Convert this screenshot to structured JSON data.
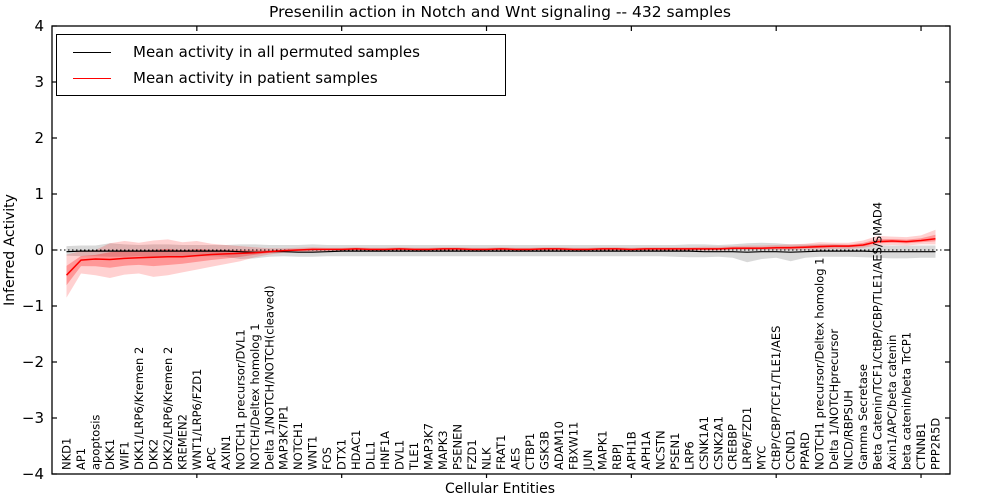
{
  "figure": {
    "title": "Presenilin action in Notch and Wnt signaling -- 432 samples",
    "xlabel": "Cellular Entities",
    "ylabel": "Inferred Activity"
  },
  "chart_data": {
    "type": "line",
    "title": "Presenilin action in Notch and Wnt signaling -- 432 samples",
    "xlabel": "Cellular Entities",
    "ylabel": "Inferred Activity",
    "ylim": [
      -4,
      4
    ],
    "yticks": [
      4,
      3,
      2,
      1,
      0,
      -1,
      -2,
      -3,
      -4
    ],
    "xticks": [
      10,
      20,
      30,
      40,
      50,
      60
    ],
    "grid": false,
    "legend_position": "upper left",
    "zero_reference_line": "dotted",
    "categories": [
      "NKD1",
      "AP1",
      "apoptosis",
      "DKK1",
      "WIF1",
      "DKK1/LRP6/Kremen 2",
      "DKK2",
      "DKK2/LRP6/Kremen 2",
      "KREMEN2",
      "WNT1/LRP6/FZD1",
      "APC",
      "AXIN1",
      "NOTCH1 precursor/DVL1",
      "NOTCH/Deltex homolog 1",
      "Delta 1/NOTCH/NOTCH(cleaved)",
      "MAP3K7IP1",
      "NOTCH1",
      "WNT1",
      "FOS",
      "DTX1",
      "HDAC1",
      "DLL1",
      "HNF1A",
      "DVL1",
      "TLE1",
      "MAP3K7",
      "MAPK3",
      "PSENEN",
      "FZD1",
      "NLK",
      "FRAT1",
      "AES",
      "CTBP1",
      "GSK3B",
      "ADAM10",
      "FBXW11",
      "JUN",
      "MAPK1",
      "RBPJ",
      "APH1B",
      "APH1A",
      "NCSTN",
      "PSEN1",
      "LRP6",
      "CSNK1A1",
      "CSNK2A1",
      "CREBBP",
      "LRP6/FZD1",
      "MYC",
      "CtBP/CBP/TCF1/TLE1/AES",
      "CCND1",
      "PPARD",
      "NOTCH1 precursor/Deltex homolog 1",
      "Delta 1/NOTCHprecursor",
      "NICD/RBPSUH",
      "Gamma Secretase",
      "Beta Catenin/TCF1/CtBP/CBP/TLE1/AES/SMAD4",
      "Axin1/APC/beta catenin",
      "beta catenin/beta TrCP1",
      "CTNNB1",
      "PPP2R5D"
    ],
    "series": [
      {
        "name": "Mean activity in all permuted samples",
        "color": "#000000",
        "line_width": 1.2,
        "band_color": "rgba(0,0,0,0.15)",
        "values": [
          -0.03,
          -0.02,
          -0.02,
          -0.02,
          -0.02,
          -0.02,
          -0.02,
          -0.02,
          -0.02,
          -0.02,
          -0.02,
          -0.02,
          -0.03,
          -0.04,
          -0.03,
          -0.03,
          -0.04,
          -0.04,
          -0.03,
          -0.02,
          -0.02,
          -0.02,
          -0.02,
          -0.02,
          -0.02,
          -0.02,
          -0.02,
          -0.02,
          -0.02,
          -0.02,
          -0.02,
          -0.02,
          -0.02,
          -0.02,
          -0.02,
          -0.02,
          -0.02,
          -0.02,
          -0.02,
          -0.02,
          -0.02,
          -0.02,
          -0.02,
          -0.02,
          -0.03,
          -0.03,
          -0.03,
          -0.04,
          -0.03,
          -0.03,
          -0.04,
          -0.03,
          -0.02,
          -0.02,
          -0.02,
          -0.02,
          -0.03,
          -0.03,
          -0.03,
          -0.03,
          -0.03
        ],
        "band_hi": [
          0.07,
          0.08,
          0.08,
          0.12,
          0.1,
          0.09,
          0.1,
          0.1,
          0.09,
          0.09,
          0.09,
          0.09,
          0.1,
          0.1,
          0.09,
          0.09,
          0.09,
          0.1,
          0.09,
          0.09,
          0.09,
          0.09,
          0.09,
          0.09,
          0.09,
          0.09,
          0.09,
          0.09,
          0.09,
          0.09,
          0.09,
          0.09,
          0.09,
          0.09,
          0.09,
          0.09,
          0.09,
          0.09,
          0.09,
          0.09,
          0.09,
          0.09,
          0.09,
          0.1,
          0.1,
          0.09,
          0.1,
          0.12,
          0.13,
          0.12,
          0.1,
          0.1,
          0.1,
          0.1,
          0.09,
          0.09,
          0.08,
          0.08,
          0.08,
          0.08,
          0.08
        ],
        "band_lo": [
          -0.1,
          -0.11,
          -0.11,
          -0.12,
          -0.12,
          -0.11,
          -0.12,
          -0.12,
          -0.11,
          -0.11,
          -0.11,
          -0.12,
          -0.16,
          -0.15,
          -0.12,
          -0.11,
          -0.12,
          -0.12,
          -0.11,
          -0.11,
          -0.11,
          -0.11,
          -0.11,
          -0.11,
          -0.11,
          -0.11,
          -0.11,
          -0.11,
          -0.11,
          -0.11,
          -0.11,
          -0.11,
          -0.11,
          -0.11,
          -0.11,
          -0.11,
          -0.11,
          -0.11,
          -0.11,
          -0.11,
          -0.11,
          -0.11,
          -0.12,
          -0.13,
          -0.13,
          -0.12,
          -0.14,
          -0.22,
          -0.16,
          -0.14,
          -0.2,
          -0.14,
          -0.12,
          -0.12,
          -0.12,
          -0.13,
          -0.14,
          -0.15,
          -0.15,
          -0.14,
          -0.14
        ]
      },
      {
        "name": "Mean activity in patient samples",
        "color": "#ff0000",
        "line_width": 1.5,
        "band_color": "rgba(255,0,0,0.18)",
        "inner_band_color": "rgba(255,0,0,0.28)",
        "inner_band_fraction": 0.45,
        "values": [
          -0.45,
          -0.18,
          -0.16,
          -0.17,
          -0.15,
          -0.14,
          -0.13,
          -0.12,
          -0.12,
          -0.1,
          -0.08,
          -0.07,
          -0.06,
          -0.05,
          -0.03,
          -0.01,
          0.0,
          0.01,
          0.01,
          0.01,
          0.02,
          0.01,
          0.01,
          0.02,
          0.01,
          0.01,
          0.02,
          0.02,
          0.01,
          0.01,
          0.02,
          0.01,
          0.01,
          0.02,
          0.02,
          0.01,
          0.01,
          0.02,
          0.02,
          0.01,
          0.02,
          0.02,
          0.02,
          0.02,
          0.02,
          0.02,
          0.03,
          0.03,
          0.03,
          0.04,
          0.04,
          0.05,
          0.06,
          0.07,
          0.07,
          0.09,
          0.15,
          0.16,
          0.15,
          0.17,
          0.2
        ],
        "band_hi": [
          -0.08,
          -0.02,
          0.0,
          0.12,
          0.16,
          0.13,
          0.17,
          0.19,
          0.14,
          0.16,
          0.11,
          0.09,
          0.07,
          0.05,
          0.03,
          0.03,
          0.04,
          0.05,
          0.04,
          0.04,
          0.05,
          0.04,
          0.04,
          0.05,
          0.04,
          0.04,
          0.05,
          0.05,
          0.04,
          0.04,
          0.05,
          0.04,
          0.04,
          0.05,
          0.05,
          0.04,
          0.04,
          0.05,
          0.05,
          0.04,
          0.05,
          0.05,
          0.05,
          0.05,
          0.06,
          0.06,
          0.07,
          0.08,
          0.08,
          0.09,
          0.1,
          0.11,
          0.14,
          0.13,
          0.13,
          0.17,
          0.25,
          0.24,
          0.23,
          0.26,
          0.36
        ],
        "band_lo": [
          -0.85,
          -0.42,
          -0.45,
          -0.5,
          -0.44,
          -0.42,
          -0.48,
          -0.45,
          -0.4,
          -0.35,
          -0.3,
          -0.25,
          -0.2,
          -0.13,
          -0.08,
          -0.05,
          -0.04,
          -0.03,
          -0.02,
          -0.02,
          -0.01,
          -0.02,
          -0.02,
          -0.01,
          -0.02,
          -0.02,
          -0.01,
          -0.01,
          -0.02,
          -0.02,
          -0.01,
          -0.02,
          -0.02,
          -0.01,
          -0.01,
          -0.02,
          -0.02,
          -0.01,
          -0.01,
          -0.02,
          -0.01,
          -0.01,
          -0.01,
          -0.01,
          -0.01,
          -0.01,
          0.0,
          0.0,
          0.0,
          0.0,
          0.0,
          0.01,
          0.01,
          0.02,
          0.02,
          0.04,
          0.08,
          0.09,
          0.08,
          0.1,
          0.1
        ]
      }
    ]
  }
}
